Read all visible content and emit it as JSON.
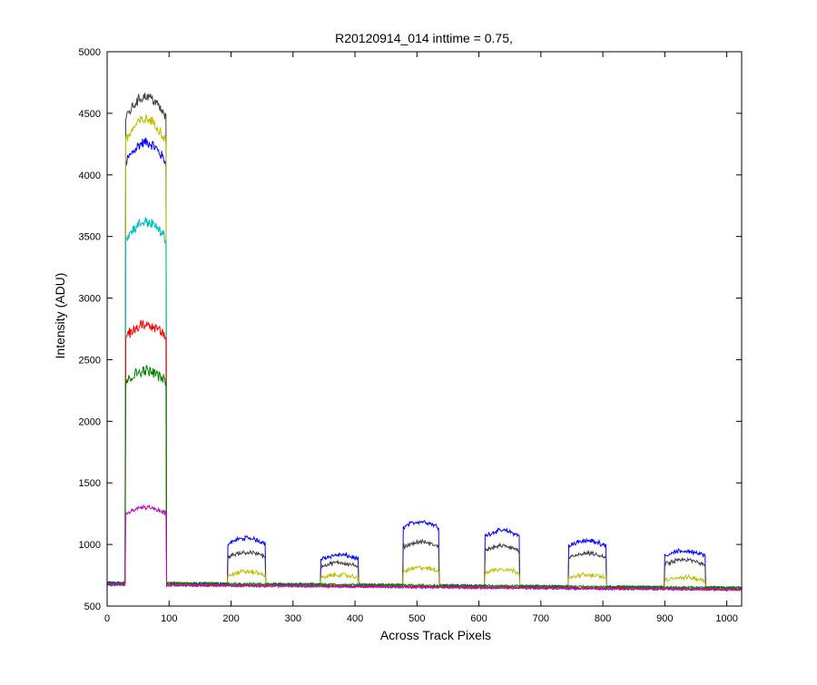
{
  "chart_data": {
    "type": "line",
    "title": "R20120914_014 inttime = 0.75,",
    "xlabel": "Across Track Pixels",
    "ylabel": "Intensity (ADU)",
    "xlim": [
      0,
      1024
    ],
    "ylim": [
      500,
      5000
    ],
    "xticks": [
      0,
      100,
      200,
      300,
      400,
      500,
      600,
      700,
      800,
      900,
      1000
    ],
    "yticks": [
      500,
      1000,
      1500,
      2000,
      2500,
      3000,
      3500,
      4000,
      4500,
      5000
    ],
    "grid": false,
    "legend": "none",
    "noise_amplitude": 25,
    "series": [
      {
        "color": "#0000ff",
        "baseline": 690,
        "segments": [
          {
            "x_start": 30,
            "x_end": 95,
            "level": 4100
          },
          {
            "x_start": 195,
            "x_end": 255,
            "level": 1010
          },
          {
            "x_start": 345,
            "x_end": 405,
            "level": 880
          },
          {
            "x_start": 478,
            "x_end": 535,
            "level": 1140
          },
          {
            "x_start": 610,
            "x_end": 665,
            "level": 1070
          },
          {
            "x_start": 745,
            "x_end": 805,
            "level": 990
          },
          {
            "x_start": 900,
            "x_end": 965,
            "level": 910
          }
        ]
      },
      {
        "color": "#404040",
        "baseline": 685,
        "segments": [
          {
            "x_start": 30,
            "x_end": 95,
            "level": 4460
          },
          {
            "x_start": 195,
            "x_end": 255,
            "level": 900
          },
          {
            "x_start": 345,
            "x_end": 405,
            "level": 820
          },
          {
            "x_start": 478,
            "x_end": 535,
            "level": 980
          },
          {
            "x_start": 610,
            "x_end": 665,
            "level": 950
          },
          {
            "x_start": 745,
            "x_end": 805,
            "level": 890
          },
          {
            "x_start": 900,
            "x_end": 965,
            "level": 840
          }
        ]
      },
      {
        "color": "#bfbf00",
        "baseline": 680,
        "segments": [
          {
            "x_start": 30,
            "x_end": 95,
            "level": 4280
          },
          {
            "x_start": 195,
            "x_end": 255,
            "level": 750
          },
          {
            "x_start": 345,
            "x_end": 405,
            "level": 725
          },
          {
            "x_start": 478,
            "x_end": 535,
            "level": 780
          },
          {
            "x_start": 610,
            "x_end": 665,
            "level": 770
          },
          {
            "x_start": 745,
            "x_end": 805,
            "level": 725
          },
          {
            "x_start": 900,
            "x_end": 965,
            "level": 705
          }
        ]
      },
      {
        "color": "#00bfbf",
        "baseline": 675,
        "segments": [
          {
            "x_start": 30,
            "x_end": 95,
            "level": 3480
          }
        ]
      },
      {
        "color": "#ff0000",
        "baseline": 680,
        "segments": [
          {
            "x_start": 30,
            "x_end": 95,
            "level": 2680
          }
        ]
      },
      {
        "color": "#008000",
        "baseline": 690,
        "segments": [
          {
            "x_start": 30,
            "x_end": 95,
            "level": 2320
          }
        ]
      },
      {
        "color": "#bf00bf",
        "baseline": 672,
        "segments": [
          {
            "x_start": 30,
            "x_end": 95,
            "level": 1250
          }
        ]
      }
    ]
  }
}
